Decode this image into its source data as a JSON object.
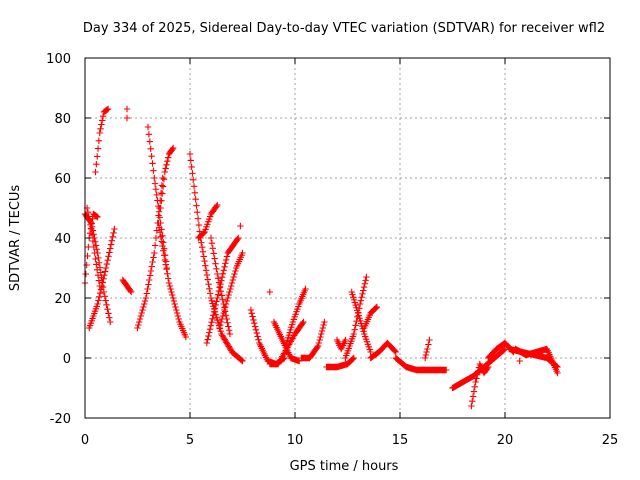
{
  "chart_data": {
    "type": "scatter",
    "title": "Day 334 of 2025, Sidereal Day-to-day VTEC variation (SDTVAR) for receiver wfl2",
    "xlabel": "GPS time / hours",
    "ylabel": "SDTVAR / TECUs",
    "xlim": [
      0,
      25
    ],
    "ylim": [
      -20,
      100
    ],
    "xticks": [
      0,
      5,
      10,
      15,
      20,
      25
    ],
    "yticks": [
      -20,
      0,
      20,
      40,
      60,
      80,
      100
    ],
    "xtick_labels": [
      "0",
      "5",
      "10",
      "15",
      "20",
      "25"
    ],
    "ytick_labels": [
      "-20",
      "0",
      "20",
      "40",
      "60",
      "80",
      "100"
    ],
    "grid": true,
    "marker": "+",
    "color": "#ff0000",
    "arc_step_hours": 0.04,
    "arcs": [
      {
        "t": [
          0.0,
          0.2,
          0.4,
          0.6
        ],
        "v": [
          25,
          40,
          48,
          47
        ]
      },
      {
        "t": [
          0.0,
          0.3,
          0.6,
          0.9,
          1.2
        ],
        "v": [
          48,
          45,
          35,
          22,
          12
        ]
      },
      {
        "t": [
          0.1,
          0.3,
          0.5,
          0.7
        ],
        "v": [
          50,
          43,
          33,
          24
        ]
      },
      {
        "t": [
          0.2,
          0.6,
          1.0,
          1.4
        ],
        "v": [
          10,
          18,
          30,
          43
        ]
      },
      {
        "t": [
          0.5,
          0.7,
          0.9,
          1.1
        ],
        "v": [
          62,
          75,
          82,
          83
        ]
      },
      {
        "t": [
          1.8,
          2.0,
          2.2
        ],
        "v": [
          26,
          24,
          22
        ]
      },
      {
        "t": [
          2.5,
          2.9,
          3.3,
          3.7
        ],
        "v": [
          10,
          20,
          35,
          60
        ]
      },
      {
        "t": [
          3.0,
          3.3,
          3.6,
          3.9
        ],
        "v": [
          77,
          60,
          45,
          30
        ]
      },
      {
        "t": [
          3.5,
          4.0,
          4.5,
          4.8
        ],
        "v": [
          45,
          25,
          12,
          7
        ]
      },
      {
        "t": [
          3.6,
          3.8,
          4.0,
          4.2
        ],
        "v": [
          50,
          62,
          68,
          70
        ]
      },
      {
        "t": [
          5.0,
          5.5,
          6.0,
          6.5,
          7.0,
          7.5
        ],
        "v": [
          68,
          40,
          20,
          8,
          2,
          -1
        ]
      },
      {
        "t": [
          5.4,
          5.7,
          6.0,
          6.3
        ],
        "v": [
          40,
          42,
          48,
          51
        ]
      },
      {
        "t": [
          5.8,
          6.3,
          6.8,
          7.3
        ],
        "v": [
          5,
          20,
          35,
          40
        ]
      },
      {
        "t": [
          6.0,
          6.3,
          6.6,
          6.9
        ],
        "v": [
          40,
          28,
          18,
          8
        ]
      },
      {
        "t": [
          6.4,
          6.8,
          7.2,
          7.5
        ],
        "v": [
          10,
          20,
          30,
          35
        ]
      },
      {
        "t": [
          7.9,
          8.3,
          8.7,
          9.1,
          9.5
        ],
        "v": [
          16,
          5,
          -1,
          -2,
          0
        ]
      },
      {
        "t": [
          8.8,
          9.2,
          9.6,
          10.0,
          10.4
        ],
        "v": [
          -2,
          -2,
          3,
          8,
          12
        ]
      },
      {
        "t": [
          9.0,
          9.4,
          9.8,
          10.2
        ],
        "v": [
          12,
          6,
          0,
          -1
        ]
      },
      {
        "t": [
          9.6,
          9.9,
          10.2,
          10.5
        ],
        "v": [
          5,
          12,
          18,
          23
        ]
      },
      {
        "t": [
          10.3,
          10.7,
          11.1,
          11.4
        ],
        "v": [
          0,
          0,
          4,
          12
        ]
      },
      {
        "t": [
          11.5,
          12.0,
          12.5,
          12.8
        ],
        "v": [
          -3,
          -3,
          -2,
          0
        ]
      },
      {
        "t": [
          12.0,
          12.2,
          12.4
        ],
        "v": [
          6,
          3,
          6
        ]
      },
      {
        "t": [
          12.4,
          12.8,
          13.1,
          13.4
        ],
        "v": [
          0,
          8,
          18,
          27
        ]
      },
      {
        "t": [
          12.7,
          13.0,
          13.3,
          13.6
        ],
        "v": [
          22,
          15,
          8,
          2
        ]
      },
      {
        "t": [
          13.3,
          13.6,
          13.9
        ],
        "v": [
          10,
          15,
          17
        ]
      },
      {
        "t": [
          13.6,
          14.0,
          14.4,
          14.8
        ],
        "v": [
          0,
          2,
          5,
          2
        ]
      },
      {
        "t": [
          14.8,
          15.3,
          15.8,
          16.3,
          16.8,
          17.2
        ],
        "v": [
          0,
          -3,
          -4,
          -4,
          -4,
          -4
        ]
      },
      {
        "t": [
          16.2,
          16.3,
          16.4
        ],
        "v": [
          0,
          3,
          6
        ]
      },
      {
        "t": [
          17.5,
          18.0,
          18.5,
          19.0,
          19.5,
          20.0
        ],
        "v": [
          -10,
          -8,
          -6,
          -3,
          0,
          3
        ]
      },
      {
        "t": [
          18.4,
          18.6,
          18.8,
          19.0,
          19.2
        ],
        "v": [
          -16,
          -8,
          -2,
          -5,
          -3
        ]
      },
      {
        "t": [
          19.2,
          19.6,
          20.0,
          20.4
        ],
        "v": [
          0,
          3,
          5,
          2
        ]
      },
      {
        "t": [
          20.2,
          20.8,
          21.4,
          22.0,
          22.5
        ],
        "v": [
          3,
          2,
          1,
          0,
          -3
        ]
      },
      {
        "t": [
          20.5,
          21.0,
          21.5,
          22.0,
          22.5
        ],
        "v": [
          3,
          1,
          2,
          3,
          -5
        ]
      }
    ],
    "isolated_points": [
      {
        "t": 2.0,
        "v": 80
      },
      {
        "t": 2.0,
        "v": 83
      },
      {
        "t": 7.4,
        "v": 44
      },
      {
        "t": 8.8,
        "v": 22
      },
      {
        "t": 20.7,
        "v": -1
      }
    ]
  }
}
